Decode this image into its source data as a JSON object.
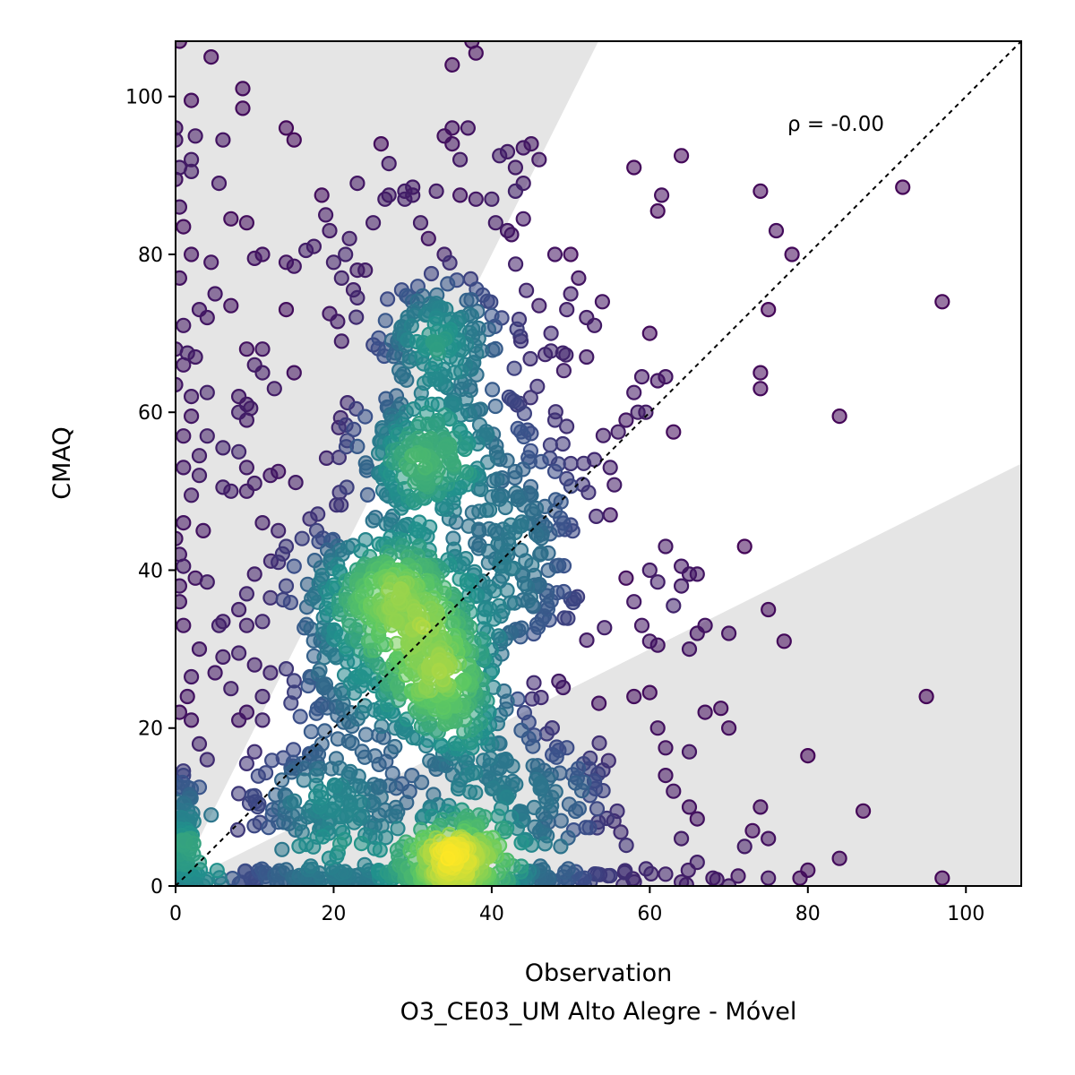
{
  "chart_data": {
    "type": "scatter",
    "xlabel": "Observation",
    "xlabel_sub": "O3_CE03_UM Alto Alegre - Móvel",
    "ylabel": "CMAQ",
    "xlim": [
      0,
      107
    ],
    "ylim": [
      0,
      107
    ],
    "xticks": [
      0,
      20,
      40,
      60,
      80,
      100
    ],
    "yticks": [
      0,
      20,
      40,
      60,
      80,
      100
    ],
    "annotation": "ρ = -0.00",
    "identity_line": true,
    "shaded_band_factor": 2,
    "colormap": "viridis",
    "colors": {
      "band": "#e5e5e5",
      "identity_line": "#000000"
    },
    "outlier_points": [
      [
        0.5,
        107
      ],
      [
        4.5,
        105
      ],
      [
        8.5,
        101
      ],
      [
        2,
        99.5
      ],
      [
        8.5,
        98.5
      ],
      [
        0,
        96
      ],
      [
        2.5,
        95
      ],
      [
        0,
        94.5
      ],
      [
        6,
        94.5
      ],
      [
        2,
        92
      ],
      [
        0.5,
        91
      ],
      [
        2,
        90.5
      ],
      [
        5.5,
        89
      ],
      [
        0,
        89.5
      ],
      [
        0.5,
        86
      ],
      [
        1,
        83.5
      ],
      [
        7,
        84.5
      ],
      [
        2,
        80
      ],
      [
        4.5,
        79
      ],
      [
        0.5,
        77
      ],
      [
        3,
        73
      ],
      [
        5,
        75
      ],
      [
        7,
        73.5
      ],
      [
        4,
        72
      ],
      [
        1,
        71
      ],
      [
        0,
        68
      ],
      [
        1.5,
        67.5
      ],
      [
        2.5,
        67
      ],
      [
        1,
        66
      ],
      [
        0,
        63.5
      ],
      [
        2,
        62
      ],
      [
        4,
        62.5
      ],
      [
        8,
        62
      ],
      [
        2,
        59.5
      ],
      [
        1,
        57
      ],
      [
        4,
        57
      ],
      [
        6,
        55.5
      ],
      [
        8,
        55
      ],
      [
        3,
        54.5
      ],
      [
        1,
        53
      ],
      [
        3,
        52
      ],
      [
        6,
        50.5
      ],
      [
        7,
        50
      ],
      [
        2,
        49.5
      ],
      [
        1,
        46
      ],
      [
        3.5,
        45
      ],
      [
        0,
        44
      ],
      [
        0.5,
        42
      ],
      [
        1,
        40.5
      ],
      [
        0.5,
        38
      ],
      [
        2.5,
        39
      ],
      [
        4,
        38.5
      ],
      [
        0.5,
        36
      ],
      [
        1,
        33
      ],
      [
        3,
        30
      ],
      [
        6,
        29
      ],
      [
        5,
        27
      ],
      [
        2,
        26.5
      ],
      [
        7,
        25
      ],
      [
        1.5,
        24
      ],
      [
        0.5,
        22
      ],
      [
        2,
        21
      ],
      [
        3,
        18
      ],
      [
        4,
        16
      ],
      [
        1,
        14
      ],
      [
        3,
        12.5
      ],
      [
        4.5,
        9
      ],
      [
        1.5,
        8
      ],
      [
        2,
        6
      ],
      [
        0.5,
        4
      ],
      [
        3,
        3
      ],
      [
        9,
        84
      ],
      [
        10,
        79.5
      ],
      [
        11,
        80
      ],
      [
        14,
        79
      ],
      [
        15,
        78.5
      ],
      [
        16.5,
        80.5
      ],
      [
        17.5,
        81
      ],
      [
        18.5,
        87.5
      ],
      [
        19,
        85
      ],
      [
        19.5,
        83
      ],
      [
        20,
        79
      ],
      [
        21,
        77
      ],
      [
        22,
        82
      ],
      [
        21.5,
        80
      ],
      [
        23,
        78
      ],
      [
        24,
        78
      ],
      [
        22.5,
        75.5
      ],
      [
        23,
        74.5
      ],
      [
        19.5,
        72.5
      ],
      [
        20.5,
        71.5
      ],
      [
        21,
        69
      ],
      [
        14,
        73
      ],
      [
        11,
        68
      ],
      [
        12.5,
        63
      ],
      [
        15,
        65
      ],
      [
        9,
        68
      ],
      [
        10,
        66
      ],
      [
        11,
        65
      ],
      [
        9,
        61
      ],
      [
        9.5,
        60.5
      ],
      [
        8,
        60
      ],
      [
        9,
        59
      ],
      [
        9,
        53
      ],
      [
        10,
        51
      ],
      [
        12,
        52
      ],
      [
        13,
        52.5
      ],
      [
        9,
        50
      ],
      [
        11,
        46
      ],
      [
        13,
        45
      ],
      [
        14,
        43
      ],
      [
        16,
        44
      ],
      [
        17,
        46.5
      ],
      [
        15,
        40.5
      ],
      [
        14,
        38
      ],
      [
        13,
        41
      ],
      [
        10,
        39.5
      ],
      [
        9,
        37
      ],
      [
        12,
        36.5
      ],
      [
        8,
        35
      ],
      [
        9,
        33
      ],
      [
        11,
        33.5
      ],
      [
        5.5,
        33
      ],
      [
        6,
        33.5
      ],
      [
        8,
        29.5
      ],
      [
        10,
        28
      ],
      [
        12,
        27
      ],
      [
        14,
        27.5
      ],
      [
        15,
        26
      ],
      [
        17,
        26.5
      ],
      [
        11,
        24
      ],
      [
        9,
        22
      ],
      [
        11,
        21
      ],
      [
        8,
        21
      ],
      [
        10,
        17
      ],
      [
        9,
        15.5
      ],
      [
        14,
        96
      ],
      [
        15,
        94.5
      ],
      [
        26,
        94
      ],
      [
        27,
        91.5
      ],
      [
        23,
        89
      ],
      [
        26.5,
        87
      ],
      [
        27,
        87.5
      ],
      [
        29,
        87
      ],
      [
        30,
        87.5
      ],
      [
        31,
        84
      ],
      [
        32,
        82
      ],
      [
        34,
        80
      ],
      [
        29,
        88
      ],
      [
        33,
        88
      ],
      [
        34,
        95
      ],
      [
        35,
        96
      ],
      [
        37,
        96
      ],
      [
        35,
        94
      ],
      [
        36,
        92
      ],
      [
        36,
        87.5
      ],
      [
        38,
        87
      ],
      [
        40,
        87
      ],
      [
        41,
        92.5
      ],
      [
        42,
        93
      ],
      [
        43,
        91
      ],
      [
        44,
        93.5
      ],
      [
        45,
        94
      ],
      [
        46,
        92
      ],
      [
        44,
        89
      ],
      [
        43,
        88
      ],
      [
        44,
        84.5
      ],
      [
        40.5,
        84
      ],
      [
        42,
        83
      ],
      [
        42.5,
        82.5
      ],
      [
        38,
        105.5
      ],
      [
        37.5,
        107
      ],
      [
        35,
        104
      ],
      [
        24,
        108
      ],
      [
        30,
        88.5
      ],
      [
        25,
        84
      ],
      [
        48,
        80
      ],
      [
        50,
        80
      ],
      [
        51,
        77
      ],
      [
        50,
        75
      ],
      [
        49.5,
        73
      ],
      [
        52,
        72
      ],
      [
        54,
        74
      ],
      [
        53,
        71
      ],
      [
        46,
        73.5
      ],
      [
        47.5,
        70
      ],
      [
        49,
        67.5
      ],
      [
        52,
        67
      ],
      [
        48,
        59
      ],
      [
        49,
        56
      ],
      [
        50,
        53.5
      ],
      [
        48,
        52.5
      ],
      [
        45,
        49.5
      ],
      [
        53,
        54
      ],
      [
        55,
        53
      ],
      [
        55,
        47
      ],
      [
        56,
        57.5
      ],
      [
        57,
        59
      ],
      [
        58,
        62.5
      ],
      [
        58.5,
        60
      ],
      [
        59,
        64.5
      ],
      [
        59.5,
        60
      ],
      [
        60,
        70
      ],
      [
        61,
        64
      ],
      [
        62,
        64.5
      ],
      [
        63,
        57.5
      ],
      [
        61.5,
        87.5
      ],
      [
        61,
        85.5
      ],
      [
        64,
        92.5
      ],
      [
        58,
        91
      ],
      [
        74,
        88
      ],
      [
        76,
        83
      ],
      [
        78,
        80
      ],
      [
        75,
        73
      ],
      [
        74,
        65
      ],
      [
        74,
        63
      ],
      [
        84,
        59.5
      ],
      [
        92,
        88.5
      ],
      [
        97,
        74
      ],
      [
        57,
        39
      ],
      [
        58,
        36
      ],
      [
        60,
        40
      ],
      [
        61,
        38.5
      ],
      [
        63,
        35.5
      ],
      [
        64,
        40.5
      ],
      [
        65,
        39.5
      ],
      [
        66,
        39.5
      ],
      [
        64,
        38
      ],
      [
        62,
        43
      ],
      [
        59,
        33
      ],
      [
        60,
        31
      ],
      [
        61,
        30.5
      ],
      [
        65,
        30
      ],
      [
        66,
        32
      ],
      [
        67,
        33
      ],
      [
        72,
        43
      ],
      [
        70,
        32
      ],
      [
        75,
        35
      ],
      [
        77,
        31
      ],
      [
        58,
        24
      ],
      [
        60,
        24.5
      ],
      [
        61,
        20
      ],
      [
        62,
        17.5
      ],
      [
        65,
        17
      ],
      [
        67,
        22
      ],
      [
        69,
        22.5
      ],
      [
        70,
        20
      ],
      [
        62,
        14
      ],
      [
        63,
        12
      ],
      [
        65,
        10
      ],
      [
        66,
        8.5
      ],
      [
        64,
        6
      ],
      [
        66,
        3
      ],
      [
        68,
        1
      ],
      [
        70,
        0
      ],
      [
        72,
        5
      ],
      [
        73,
        7
      ],
      [
        74,
        10
      ],
      [
        75,
        6
      ],
      [
        75,
        1
      ],
      [
        79,
        1
      ],
      [
        80,
        2
      ],
      [
        84,
        3.5
      ],
      [
        80,
        16.5
      ],
      [
        87,
        9.5
      ],
      [
        95,
        24
      ],
      [
        97,
        1
      ],
      [
        64,
        0.5
      ],
      [
        62,
        1.5
      ]
    ],
    "clusters": [
      {
        "cx": 35.5,
        "cy": 4,
        "sx": 5,
        "sy": 3.2,
        "n": 170
      },
      {
        "cx": 33,
        "cy": 26,
        "sx": 6,
        "sy": 7,
        "n": 320
      },
      {
        "cx": 29,
        "cy": 38,
        "sx": 6,
        "sy": 6,
        "n": 220
      },
      {
        "cx": 31,
        "cy": 55,
        "sx": 6.5,
        "sy": 7,
        "n": 220
      },
      {
        "cx": 34,
        "cy": 70,
        "sx": 6,
        "sy": 5,
        "n": 140
      },
      {
        "cx": 43,
        "cy": 45,
        "sx": 7,
        "sy": 15,
        "n": 260
      },
      {
        "cx": 22,
        "cy": 30,
        "sx": 5,
        "sy": 12,
        "n": 180
      },
      {
        "cx": 20,
        "cy": 10,
        "sx": 8,
        "sy": 5,
        "n": 160
      },
      {
        "cx": 45,
        "cy": 12,
        "sx": 8,
        "sy": 6,
        "n": 150
      },
      {
        "cx": 30,
        "cy": 1,
        "sx": 22,
        "sy": 0.9,
        "n": 260
      },
      {
        "cx": 1,
        "cy": 6,
        "sx": 0.9,
        "sy": 6,
        "n": 100
      }
    ]
  }
}
